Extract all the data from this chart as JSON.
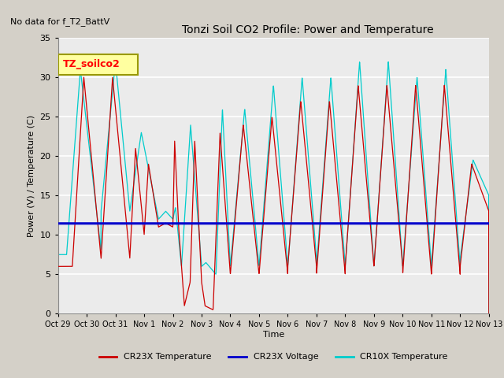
{
  "title": "Tonzi Soil CO2 Profile: Power and Temperature",
  "subtitle": "No data for f_T2_BattV",
  "ylabel": "Power (V) / Temperature (C)",
  "xlabel": "Time",
  "ylim": [
    0,
    35
  ],
  "xlim": [
    0,
    15
  ],
  "plot_bg_color": "#ebebeb",
  "legend_label": "TZ_soilco2",
  "tick_labels": [
    "Oct 29",
    "Oct 30",
    "Oct 31",
    "Nov 1",
    "Nov 2",
    "Nov 3",
    "Nov 4",
    "Nov 5",
    "Nov 6",
    "Nov 7",
    "Nov 8",
    "Nov 9",
    "Nov 10",
    "Nov 11",
    "Nov 12",
    "Nov 13"
  ],
  "voltage_value": 11.45,
  "cr23x_color": "#cc0000",
  "voltage_color": "#0000cc",
  "cr10x_color": "#00cccc",
  "grid_color": "#ffffff",
  "legend_box_facecolor": "#ffffa0",
  "legend_box_edgecolor": "#999900"
}
